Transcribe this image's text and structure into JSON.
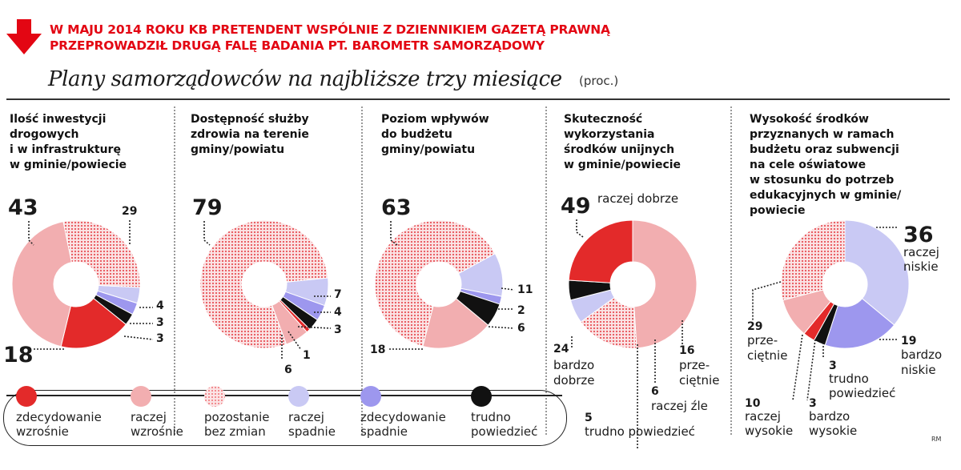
{
  "header": {
    "line1": "W MAJU 2014 ROKU KB PRETENDENT WSPÓLNIE Z DZIENNIKIEM GAZETĄ PRAWNĄ",
    "line2": "PRZEPROWADZIŁ DRUGĄ FALĘ BADANIA PT. BAROMETR SAMORZĄDOWY",
    "accent_color": "#e30613",
    "arrow_icon": "down-arrow-icon"
  },
  "subtitle": "Plany samorządowców na najbliższe trzy miesiące",
  "unit": "(proc.)",
  "credit": "RM",
  "legend": [
    {
      "key": "zw",
      "line1": "zdecydowanie",
      "line2": "wzrośnie",
      "color": "#e32a2a",
      "pattern": false
    },
    {
      "key": "rw",
      "line1": "raczej",
      "line2": "wzrośnie",
      "color": "#f2aeb0",
      "pattern": false
    },
    {
      "key": "bz",
      "line1": "pozostanie",
      "line2": "bez zmian",
      "color": "#ef6f73",
      "pattern": true
    },
    {
      "key": "rs",
      "line1": "raczej",
      "line2": "spadnie",
      "color": "#c9c9f4",
      "pattern": false
    },
    {
      "key": "zs",
      "line1": "zdecydowanie",
      "line2": "spadnie",
      "color": "#9d97ee",
      "pattern": false
    },
    {
      "key": "tp",
      "line1": "trudno",
      "line2": "powiedzieć",
      "color": "#111111",
      "pattern": false
    }
  ],
  "chart_data": [
    {
      "type": "pie",
      "title": [
        "Ilość inwestycji",
        "drogowych",
        "i w infrastrukturę",
        "w gminie/powiecie"
      ],
      "categories": [
        "zdecydowanie wzrośnie",
        "raczej wzrośnie",
        "pozostanie bez zmian",
        "raczej spadnie",
        "zdecydowanie spadnie",
        "trudno powiedzieć"
      ],
      "values": [
        18,
        43,
        29,
        4,
        3,
        3
      ],
      "labels": [
        {
          "text": "43",
          "big": true
        },
        {
          "text": "29",
          "big": false
        },
        {
          "text": "4",
          "big": false
        },
        {
          "text": "3",
          "big": false
        },
        {
          "text": "3",
          "big": false
        },
        {
          "text": "18",
          "big": true
        }
      ]
    },
    {
      "type": "pie",
      "title": [
        "Dostępność służby",
        "zdrowia na terenie",
        "gminy/powiatu"
      ],
      "categories": [
        "zdecydowanie wzrośnie",
        "raczej wzrośnie",
        "pozostanie bez zmian",
        "raczej spadnie",
        "zdecydowanie spadnie",
        "trudno powiedzieć"
      ],
      "values": [
        1,
        6,
        79,
        7,
        4,
        3
      ],
      "labels": [
        {
          "text": "79",
          "big": true
        },
        {
          "text": "7",
          "big": false
        },
        {
          "text": "4",
          "big": false
        },
        {
          "text": "3",
          "big": false
        },
        {
          "text": "1",
          "big": false
        },
        {
          "text": "6",
          "big": false
        }
      ]
    },
    {
      "type": "pie",
      "title": [
        "Poziom wpływów",
        "do budżetu",
        "gminy/powiatu"
      ],
      "categories": [
        "zdecydowanie wzrośnie",
        "raczej wzrośnie",
        "pozostanie bez zmian",
        "raczej spadnie",
        "zdecydowanie spadnie",
        "trudno powiedzieć"
      ],
      "values": [
        0,
        18,
        63,
        11,
        2,
        6
      ],
      "labels": [
        {
          "text": "63",
          "big": true
        },
        {
          "text": "11",
          "big": false
        },
        {
          "text": "2",
          "big": false
        },
        {
          "text": "6",
          "big": false
        },
        {
          "text": "18",
          "big": false
        }
      ]
    },
    {
      "type": "pie",
      "title": [
        "Skuteczność",
        "wykorzystania",
        "środków unijnych",
        "w gminie/powiecie"
      ],
      "categories": [
        "raczej dobrze",
        "przeciętnie",
        "raczej źle",
        "trudno powiedzieć",
        "bardzo dobrze"
      ],
      "values": [
        49,
        16,
        6,
        5,
        24
      ],
      "labels": [
        {
          "text": "49",
          "big": true
        },
        {
          "text": "raczej dobrze",
          "big": false
        },
        {
          "text": "24",
          "big": false
        },
        {
          "text": "bardzo",
          "big": false
        },
        {
          "text": "dobrze",
          "big": false
        },
        {
          "text": "5",
          "big": false
        },
        {
          "text": "trudno powiedzieć",
          "big": false
        },
        {
          "text": "6",
          "big": false
        },
        {
          "text": "raczej źle",
          "big": false
        },
        {
          "text": "16",
          "big": false
        },
        {
          "text": "prze-",
          "big": false
        },
        {
          "text": "ciętnie",
          "big": false
        }
      ]
    },
    {
      "type": "pie",
      "title": [
        "Wysokość środków",
        "przyznanych w ramach",
        "budżetu oraz subwencji",
        "na cele oświatowe",
        "w stosunku do potrzeb",
        "edukacyjnych w gminie/",
        "powiecie"
      ],
      "categories": [
        "raczej niskie",
        "bardzo niskie",
        "trudno powiedzieć",
        "bardzo wysokie",
        "raczej wysokie",
        "przeciętnie"
      ],
      "values": [
        36,
        19,
        3,
        3,
        10,
        29
      ],
      "labels": [
        {
          "text": "36",
          "big": true
        },
        {
          "text": "raczej",
          "big": false
        },
        {
          "text": "niskie",
          "big": false
        },
        {
          "text": "19",
          "big": false
        },
        {
          "text": "bardzo",
          "big": false
        },
        {
          "text": "niskie",
          "big": false
        },
        {
          "text": "3",
          "big": false
        },
        {
          "text": "trudno",
          "big": false
        },
        {
          "text": "powiedzieć",
          "big": false
        },
        {
          "text": "3",
          "big": false
        },
        {
          "text": "bardzo",
          "big": false
        },
        {
          "text": "wysokie",
          "big": false
        },
        {
          "text": "10",
          "big": false
        },
        {
          "text": "raczej",
          "big": false
        },
        {
          "text": "wysokie",
          "big": false
        },
        {
          "text": "29",
          "big": false
        },
        {
          "text": "prze-",
          "big": false
        },
        {
          "text": "ciętnie",
          "big": false
        }
      ]
    }
  ]
}
